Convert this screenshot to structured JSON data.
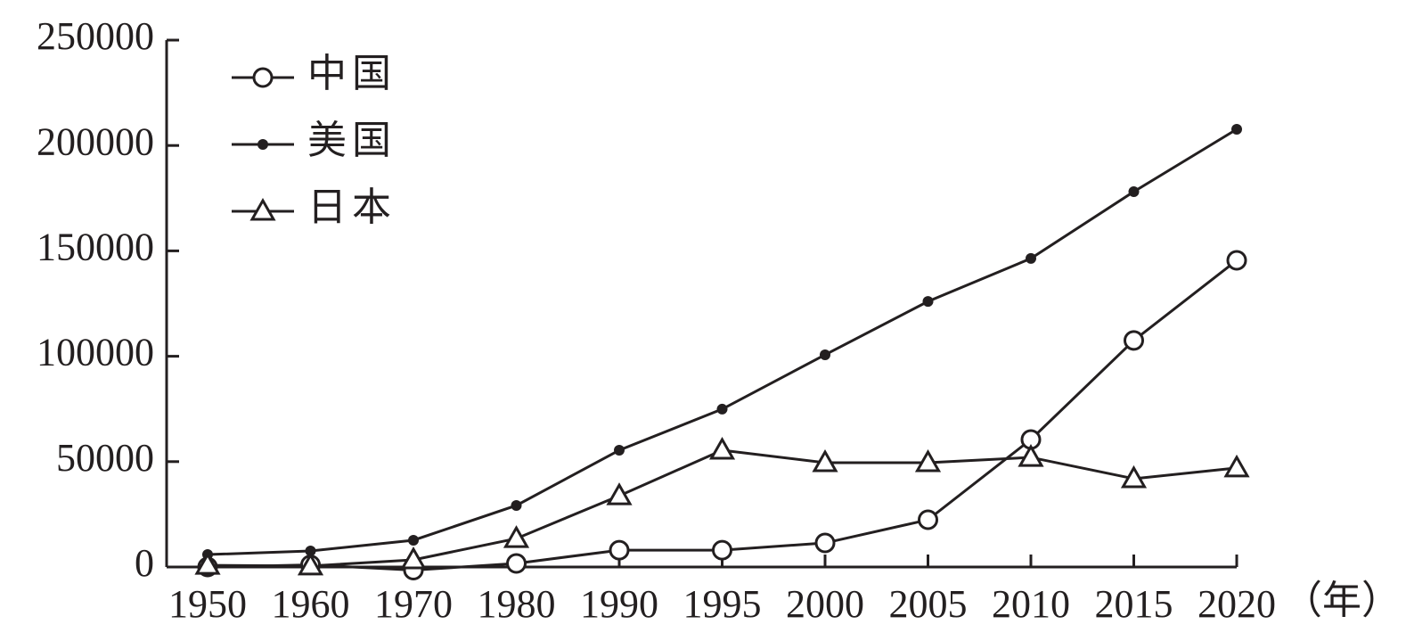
{
  "chart_data": {
    "type": "line",
    "categories": [
      "1950",
      "1960",
      "1970",
      "1980",
      "1990",
      "1995",
      "2000",
      "2005",
      "2010",
      "2015",
      "2020"
    ],
    "x_label": "（年）",
    "series": [
      {
        "name": "中国",
        "color": "#231f20",
        "marker": "open-circle",
        "values": [
          0,
          1000,
          -1500,
          1700,
          8000,
          8000,
          11400,
          22400,
          60500,
          107500,
          145500
        ]
      },
      {
        "name": "美国",
        "color": "#231f20",
        "marker": "filled-circle",
        "values": [
          5900,
          7600,
          12700,
          29200,
          55400,
          74900,
          100700,
          126000,
          146400,
          178100,
          207700
        ]
      },
      {
        "name": "日本",
        "color": "#231f20",
        "marker": "open-triangle",
        "values": [
          800,
          500,
          3400,
          13500,
          33800,
          55400,
          49500,
          49500,
          52000,
          41900,
          47000
        ]
      }
    ],
    "ylim": [
      0,
      250000
    ],
    "yticks": [
      0,
      50000,
      100000,
      150000,
      200000,
      250000
    ],
    "grid": false,
    "legend": "top-left"
  }
}
